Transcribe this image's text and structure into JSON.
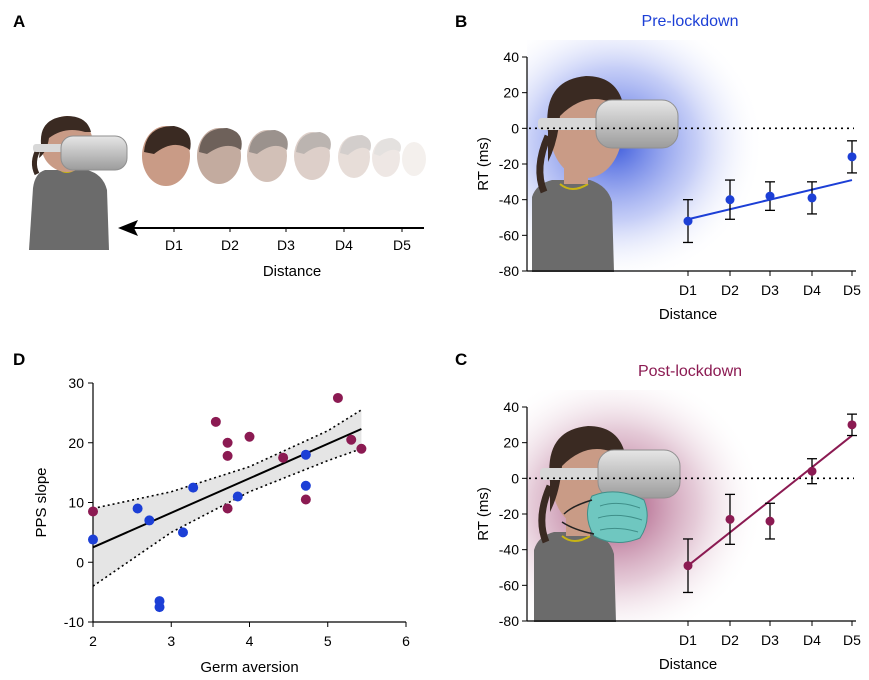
{
  "panels": {
    "A": {
      "letter": "A",
      "distance_labels": [
        "D1",
        "D2",
        "D3",
        "D4",
        "D5"
      ],
      "xlabel": "Distance"
    },
    "B": {
      "letter": "B"
    },
    "C": {
      "letter": "C"
    },
    "D": {
      "letter": "D"
    }
  },
  "colors": {
    "pre": "#1c3fd6",
    "post": "#8b1a52",
    "skin": "#c99b86",
    "hair": "#3a2a22",
    "shirt": "#6b6b6b",
    "headset": "#c9c9c9"
  },
  "icons": {
    "avatar": "person-with-vr-headset-icon",
    "mask": "face-mask-icon",
    "faces": "approaching-face-icon",
    "arrow": "left-arrow-icon"
  },
  "chart_data": [
    {
      "id": "B",
      "type": "line",
      "title": "Pre-lockdown",
      "xlabel": "Distance",
      "ylabel": "RT (ms)",
      "categories": [
        "D1",
        "D2",
        "D3",
        "D4",
        "D5"
      ],
      "ylim": [
        -80,
        40
      ],
      "yticks": [
        40,
        20,
        0,
        -20,
        -40,
        -60,
        -80
      ],
      "reference_line": 0,
      "series": [
        {
          "values": [
            -52,
            -40,
            -38,
            -39,
            -16
          ],
          "error": [
            12,
            11,
            8,
            9,
            9
          ],
          "fit": [
            -51,
            -29
          ]
        }
      ]
    },
    {
      "id": "C",
      "type": "line",
      "title": "Post-lockdown",
      "xlabel": "Distance",
      "ylabel": "RT (ms)",
      "categories": [
        "D1",
        "D2",
        "D3",
        "D4",
        "D5"
      ],
      "ylim": [
        -80,
        40
      ],
      "yticks": [
        40,
        20,
        0,
        -20,
        -40,
        -60,
        -80
      ],
      "reference_line": 0,
      "series": [
        {
          "values": [
            -49,
            -23,
            -24,
            4,
            30
          ],
          "error": [
            15,
            14,
            10,
            7,
            6
          ],
          "fit": [
            -49,
            24
          ]
        }
      ]
    },
    {
      "id": "D",
      "type": "scatter",
      "xlabel": "Germ aversion",
      "ylabel": "PPS slope",
      "xlim": [
        2,
        6
      ],
      "ylim": [
        -10,
        30
      ],
      "xticks": [
        2,
        3,
        4,
        5,
        6
      ],
      "yticks": [
        -10,
        0,
        10,
        20,
        30
      ],
      "series": [
        {
          "group": "pre",
          "points": [
            [
              2.0,
              3.8
            ],
            [
              2.57,
              9
            ],
            [
              2.72,
              7
            ],
            [
              2.85,
              -6.5
            ],
            [
              2.85,
              -7.5
            ],
            [
              3.15,
              5
            ],
            [
              3.28,
              12.5
            ],
            [
              3.85,
              11
            ],
            [
              4.72,
              18
            ],
            [
              4.72,
              12.8
            ]
          ]
        },
        {
          "group": "post",
          "points": [
            [
              2.0,
              8.5
            ],
            [
              3.57,
              23.5
            ],
            [
              3.72,
              20
            ],
            [
              3.72,
              17.8
            ],
            [
              3.72,
              9
            ],
            [
              4.0,
              21
            ],
            [
              4.43,
              17.5
            ],
            [
              4.72,
              10.5
            ],
            [
              5.13,
              27.5
            ],
            [
              5.3,
              20.5
            ],
            [
              5.43,
              19
            ]
          ]
        }
      ],
      "fit_line": [
        [
          2.0,
          2.5
        ],
        [
          5.43,
          22.3
        ]
      ],
      "confidence_band": {
        "upper": [
          [
            2.0,
            9
          ],
          [
            3.0,
            11.8
          ],
          [
            4.0,
            16
          ],
          [
            5.0,
            22
          ],
          [
            5.43,
            25.5
          ]
        ],
        "lower": [
          [
            2.0,
            -4
          ],
          [
            3.0,
            5
          ],
          [
            4.0,
            11.8
          ],
          [
            5.0,
            17
          ],
          [
            5.43,
            19
          ]
        ]
      }
    }
  ]
}
